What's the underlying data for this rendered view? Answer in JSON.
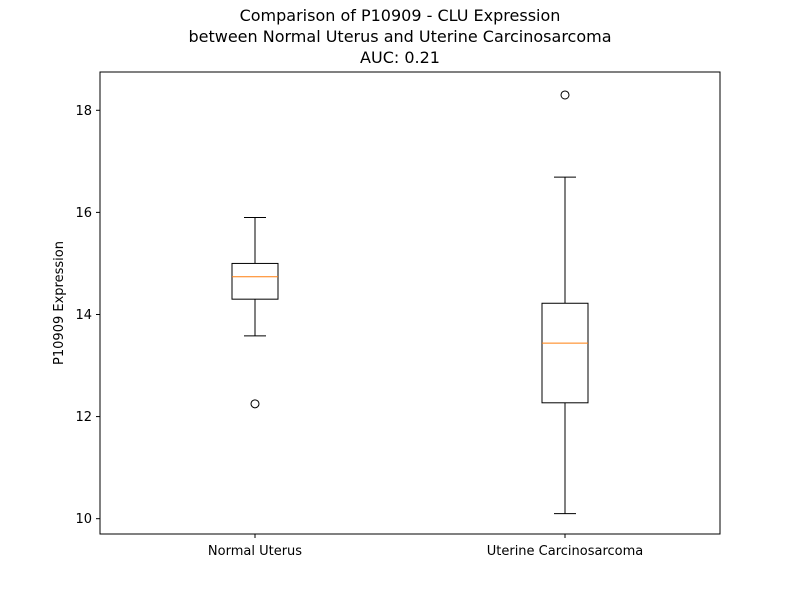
{
  "chart_data": {
    "type": "box",
    "title_lines": [
      "Comparison of P10909 - CLU Expression",
      "between Normal Uterus and Uterine Carcinosarcoma",
      "AUC: 0.21"
    ],
    "xlabel": "",
    "ylabel": "P10909 Expression",
    "ylim": [
      9.7,
      18.75
    ],
    "yticks": [
      10,
      12,
      14,
      16,
      18
    ],
    "categories": [
      "Normal Uterus",
      "Uterine Carcinosarcoma"
    ],
    "boxes": [
      {
        "category": "Normal Uterus",
        "whisker_low": 13.58,
        "q1": 14.3,
        "median": 14.74,
        "q3": 15.0,
        "whisker_high": 15.9,
        "outliers": [
          12.25
        ]
      },
      {
        "category": "Uterine Carcinosarcoma",
        "whisker_low": 10.1,
        "q1": 12.27,
        "median": 13.44,
        "q3": 14.22,
        "whisker_high": 16.69,
        "outliers": [
          18.3
        ]
      }
    ],
    "colors": {
      "box": "#000000",
      "median": "#ff7f0e",
      "background": "#ffffff"
    },
    "grid": false
  }
}
